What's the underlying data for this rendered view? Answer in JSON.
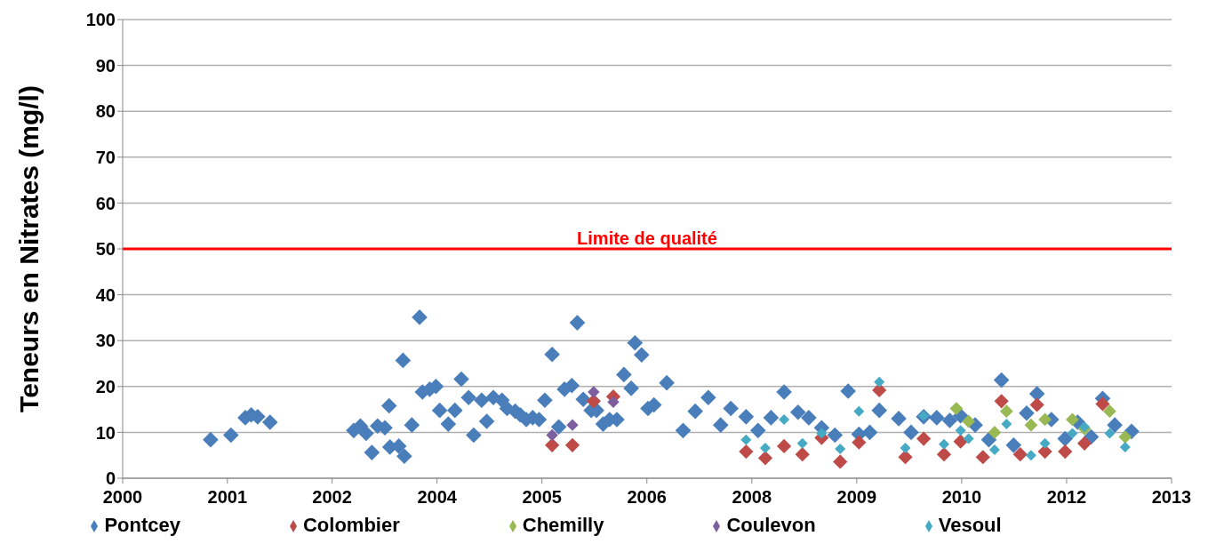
{
  "chart_data": {
    "type": "scatter",
    "ylabel": "Teneurs en Nitrates (mg/l)",
    "marker": "diamond",
    "grid": "y",
    "legend": "bottom",
    "xlim": [
      "2000-04-20",
      "2013-04-20"
    ],
    "xticks": [
      {
        "value": "2000-04-20",
        "label": "2000"
      },
      {
        "value": "2001-08-07",
        "label": "2001"
      },
      {
        "value": "2002-11-24",
        "label": "2002"
      },
      {
        "value": "2004-03-13",
        "label": "2004"
      },
      {
        "value": "2005-07-01",
        "label": "2005"
      },
      {
        "value": "2006-10-19",
        "label": "2006"
      },
      {
        "value": "2008-02-06",
        "label": "2008"
      },
      {
        "value": "2009-05-26",
        "label": "2009"
      },
      {
        "value": "2010-09-13",
        "label": "2010"
      },
      {
        "value": "2012-01-01",
        "label": "2012"
      },
      {
        "value": "2013-04-20",
        "label": "2013"
      }
    ],
    "ylim": [
      0,
      100
    ],
    "yticks": [
      0,
      10,
      20,
      30,
      40,
      50,
      60,
      70,
      80,
      90,
      100
    ],
    "ref_lines": [
      {
        "axis": "y",
        "value": 50,
        "label": "Limite de qualité",
        "color": "#ff0000"
      }
    ],
    "series": [
      {
        "name": "Pontcey",
        "color": "#4a7ebb",
        "x": [
          "2001-05-23",
          "2001-08-23",
          "2001-10-27",
          "2001-11-23",
          "2001-12-22",
          "2002-02-16",
          "2003-03-02",
          "2003-04-01",
          "2003-04-27",
          "2003-05-23",
          "2003-06-18",
          "2003-07-21",
          "2003-08-09",
          "2003-08-13",
          "2003-09-22",
          "2003-10-11",
          "2003-10-17",
          "2003-11-20",
          "2003-12-25",
          "2004-01-07",
          "2004-02-09",
          "2004-03-08",
          "2004-03-25",
          "2004-05-03",
          "2004-06-02",
          "2004-07-01",
          "2004-08-03",
          "2004-08-26",
          "2004-10-01",
          "2004-10-24",
          "2004-11-23",
          "2005-01-01",
          "2005-01-24",
          "2005-03-02",
          "2005-03-25",
          "2005-04-21",
          "2005-05-20",
          "2005-06-18",
          "2005-07-14",
          "2005-08-16",
          "2005-09-15",
          "2005-10-11",
          "2005-11-13",
          "2005-12-08",
          "2006-01-04",
          "2006-02-09",
          "2006-03-05",
          "2006-04-04",
          "2006-05-03",
          "2006-06-05",
          "2006-07-07",
          "2006-08-09",
          "2006-08-26",
          "2006-09-25",
          "2006-10-24",
          "2006-11-20",
          "2007-01-17",
          "2007-04-01",
          "2007-05-26",
          "2007-07-24",
          "2007-09-18",
          "2007-11-03",
          "2008-01-11",
          "2008-03-05",
          "2008-05-03",
          "2008-07-01",
          "2008-09-02",
          "2008-10-21",
          "2008-12-18",
          "2009-02-16",
          "2009-04-17",
          "2009-06-05",
          "2009-07-24",
          "2009-09-05",
          "2009-12-02",
          "2010-01-27",
          "2010-03-25",
          "2010-05-23",
          "2010-07-21",
          "2010-09-08",
          "2010-11-13",
          "2011-01-14",
          "2011-03-12",
          "2011-05-06",
          "2011-07-04",
          "2011-08-20",
          "2011-10-24",
          "2011-12-25",
          "2012-02-20",
          "2012-04-21",
          "2012-06-12",
          "2012-08-06",
          "2012-10-21"
        ],
        "values": [
          8.4,
          9.4,
          13.2,
          13.8,
          13.4,
          12.2,
          10.4,
          11.4,
          9.8,
          5.6,
          11.4,
          11,
          15.8,
          6.8,
          7,
          25.7,
          4.8,
          11.6,
          35.1,
          18.8,
          19.4,
          20,
          14.8,
          11.8,
          14.8,
          21.6,
          17.6,
          9.4,
          17,
          12.4,
          17.6,
          17,
          15.2,
          14.6,
          13.8,
          12.8,
          13.2,
          12.8,
          17,
          27,
          11.2,
          19.4,
          20.2,
          33.9,
          17.2,
          14.8,
          14.8,
          11.8,
          12.8,
          12.8,
          22.6,
          19.6,
          29.5,
          26.9,
          15.2,
          16,
          20.8,
          10.4,
          14.6,
          17.6,
          11.6,
          15.2,
          13.4,
          10.4,
          13.2,
          18.8,
          14.4,
          13.2,
          11,
          9.4,
          19,
          9.6,
          10,
          14.8,
          13,
          10,
          13.4,
          13.2,
          12.6,
          13.6,
          11.6,
          8.4,
          21.4,
          7.2,
          14.2,
          18.4,
          12.8,
          8.6,
          12.2,
          9,
          17.4,
          11.6,
          10.2
        ]
      },
      {
        "name": "Colombier",
        "color": "#be4b48",
        "x": [
          "2005-08-16",
          "2005-11-16",
          "2006-02-20",
          "2006-05-20",
          "2008-01-11",
          "2008-04-07",
          "2008-07-01",
          "2008-09-22",
          "2008-12-18",
          "2009-03-12",
          "2009-06-05",
          "2009-09-05",
          "2010-01-01",
          "2010-03-25",
          "2010-06-25",
          "2010-09-08",
          "2010-12-18",
          "2011-03-12",
          "2011-06-05",
          "2011-08-20",
          "2011-09-25",
          "2011-12-25",
          "2012-03-22",
          "2012-06-12"
        ],
        "values": [
          7.2,
          7.2,
          16.8,
          17.8,
          5.8,
          4.4,
          7,
          5.2,
          8.8,
          3.6,
          7.8,
          19.2,
          4.6,
          8.6,
          5.2,
          8,
          4.6,
          16.8,
          5.2,
          16,
          5.8,
          5.8,
          7.6,
          16.2
        ]
      },
      {
        "name": "Chemilly",
        "color": "#98b954",
        "x": [
          "2010-08-20",
          "2010-10-14",
          "2011-02-09",
          "2011-04-04",
          "2011-07-24",
          "2011-09-25",
          "2012-01-27",
          "2012-03-22",
          "2012-07-14",
          "2012-09-22"
        ],
        "values": [
          15.2,
          12.4,
          10,
          14.6,
          11.6,
          12.8,
          12.8,
          10.8,
          14.6,
          9
        ]
      },
      {
        "name": "Coulevon",
        "color": "#7d5fa0",
        "x": [
          "2005-08-16",
          "2005-11-16",
          "2006-02-20",
          "2006-05-20"
        ],
        "values": [
          9.4,
          11.6,
          18.8,
          16.6
        ]
      },
      {
        "name": "Vesoul",
        "color": "#46aac5",
        "x": [
          "2008-01-11",
          "2008-04-07",
          "2008-07-01",
          "2008-09-22",
          "2008-12-18",
          "2009-03-12",
          "2009-06-05",
          "2009-09-05",
          "2010-01-01",
          "2010-03-25",
          "2010-06-25",
          "2010-09-08",
          "2010-10-14",
          "2011-02-09",
          "2011-04-04",
          "2011-07-24",
          "2011-09-25",
          "2012-01-27",
          "2012-03-22",
          "2012-07-14",
          "2012-09-22"
        ],
        "values": [
          8.4,
          6.6,
          12.8,
          7.6,
          9.8,
          6.4,
          14.6,
          21,
          6.6,
          13.6,
          7.4,
          10.4,
          8.6,
          6.2,
          11.8,
          5,
          7.6,
          9.8,
          11.2,
          9.8,
          6.8
        ]
      }
    ]
  }
}
